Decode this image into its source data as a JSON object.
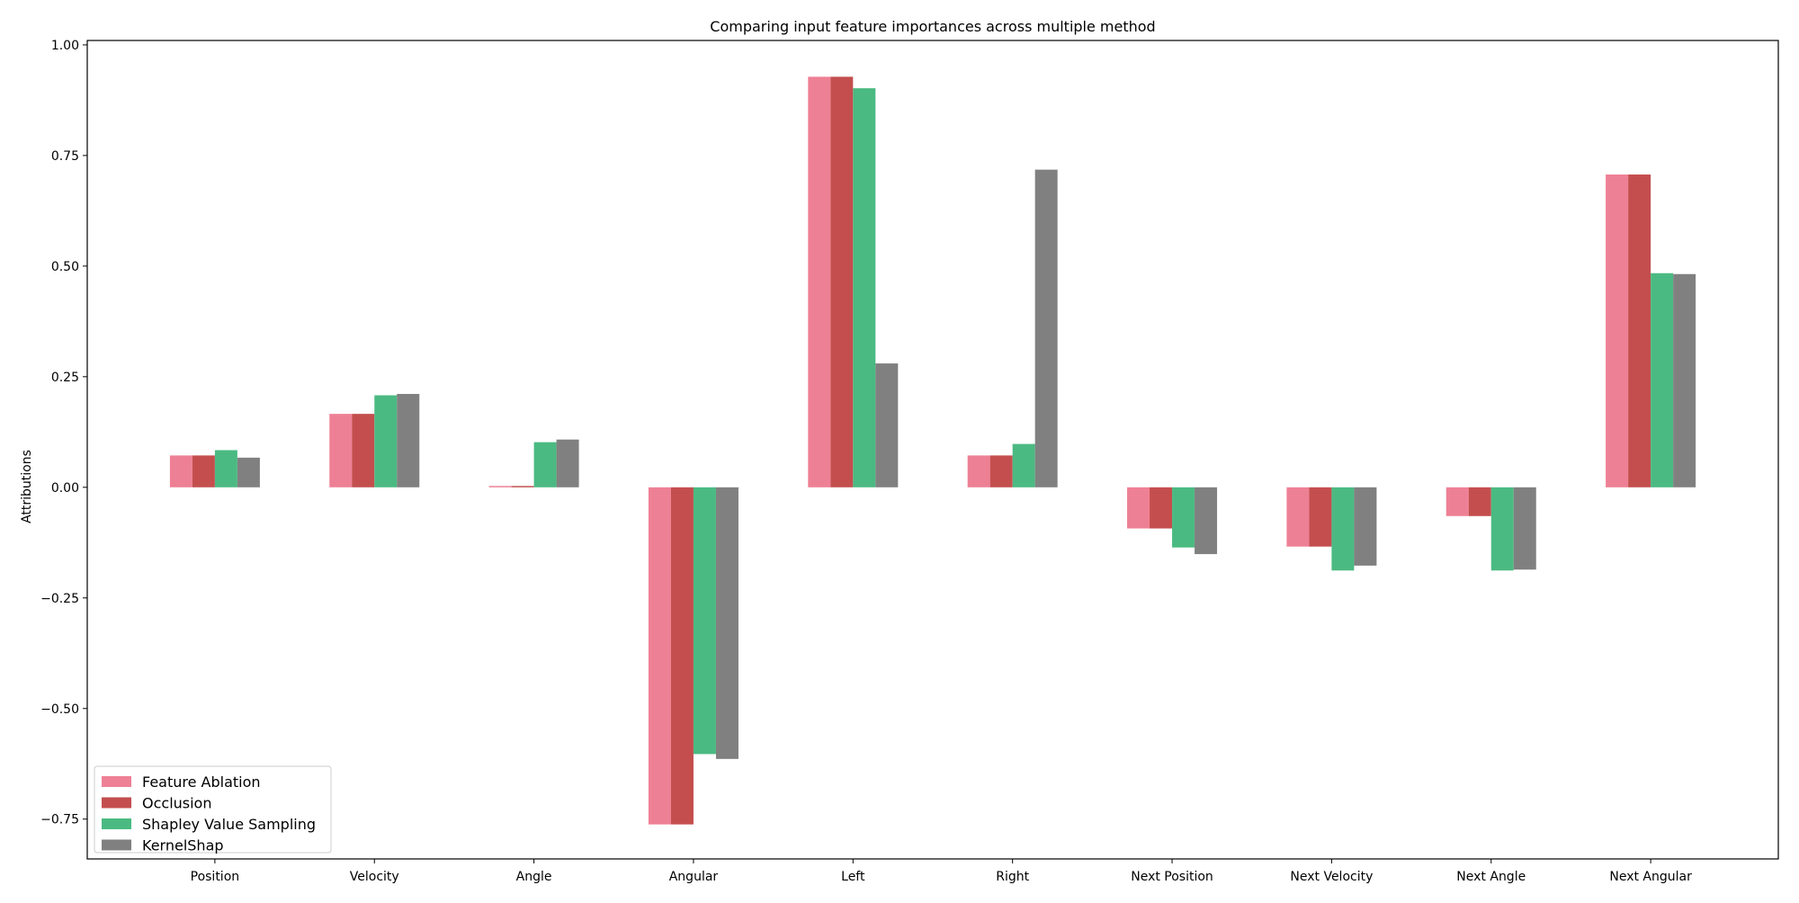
{
  "chart_data": {
    "type": "bar",
    "title": "Comparing input feature importances across multiple method",
    "xlabel": "",
    "ylabel": "Attributions",
    "categories": [
      "Position",
      "Velocity",
      "Angle",
      "Angular",
      "Left",
      "Right",
      "Next Position",
      "Next Velocity",
      "Next Angle",
      "Next Angular"
    ],
    "ylim": [
      -0.84,
      1.01
    ],
    "yticks": [
      1.0,
      0.75,
      0.5,
      0.25,
      0.0,
      -0.25,
      -0.5,
      -0.75
    ],
    "ytick_labels": [
      "1.00",
      "0.75",
      "0.50",
      "0.25",
      "0.00",
      "−0.25",
      "−0.50",
      "−0.75"
    ],
    "grid": false,
    "legend_position": "lower-left",
    "series": [
      {
        "name": "Feature Ablation",
        "color": "#ee8095",
        "values": [
          0.072,
          0.166,
          0.003,
          -0.762,
          0.928,
          0.072,
          -0.093,
          -0.134,
          -0.065,
          0.707
        ]
      },
      {
        "name": "Occlusion",
        "color": "#c44e4e",
        "values": [
          0.072,
          0.166,
          0.003,
          -0.762,
          0.928,
          0.072,
          -0.093,
          -0.134,
          -0.065,
          0.707
        ]
      },
      {
        "name": "Shapley Value Sampling",
        "color": "#4bba82",
        "values": [
          0.084,
          0.208,
          0.102,
          -0.603,
          0.902,
          0.098,
          -0.136,
          -0.188,
          -0.188,
          0.484
        ]
      },
      {
        "name": "KernelShap",
        "color": "#808080",
        "values": [
          0.067,
          0.211,
          0.108,
          -0.614,
          0.28,
          0.718,
          -0.151,
          -0.177,
          -0.186,
          0.482
        ]
      }
    ]
  }
}
